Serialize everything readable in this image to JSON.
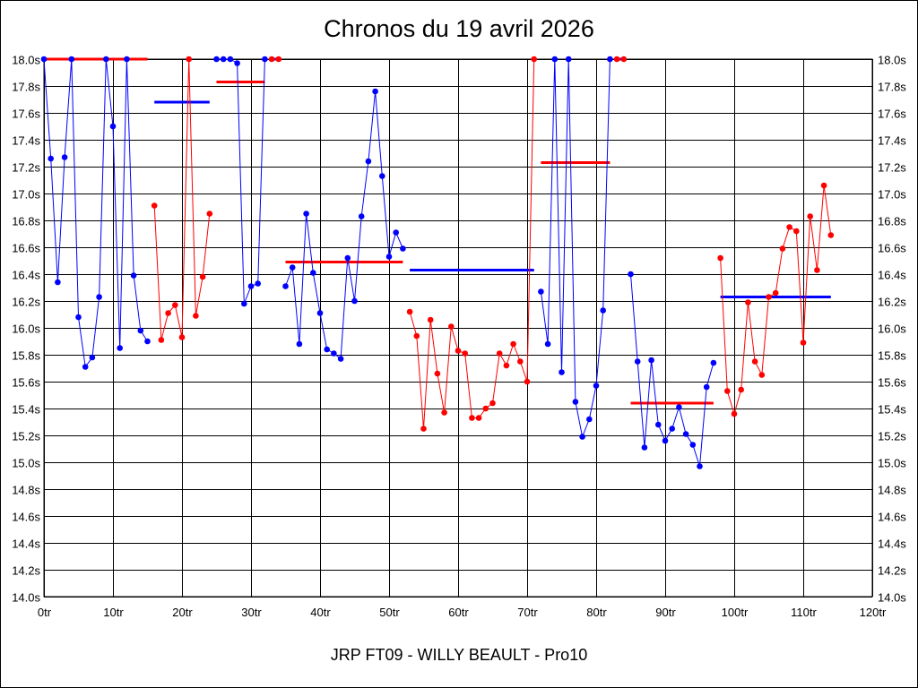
{
  "chart_data": {
    "type": "line",
    "title": "Chronos du 19 avril 2026",
    "subtitle": "JRP FT09 - WILLY BEAULT - Pro10",
    "xlabel": "",
    "ylabel": "",
    "xlim": [
      0,
      120
    ],
    "ylim": [
      14.0,
      18.0
    ],
    "grid": true,
    "x_unit": "tr",
    "y_unit": "s",
    "x_ticks": [
      "0tr",
      "10tr",
      "20tr",
      "30tr",
      "40tr",
      "50tr",
      "60tr",
      "70tr",
      "80tr",
      "90tr",
      "100tr",
      "110tr",
      "120tr"
    ],
    "y_ticks": [
      "14.0s",
      "14.2s",
      "14.4s",
      "14.6s",
      "14.8s",
      "15.0s",
      "15.2s",
      "15.4s",
      "15.6s",
      "15.8s",
      "16.0s",
      "16.2s",
      "16.4s",
      "16.6s",
      "16.8s",
      "17.0s",
      "17.2s",
      "17.4s",
      "17.6s",
      "17.8s",
      "18.0s"
    ],
    "colors": {
      "blue": "#0000ff",
      "red": "#ff0000"
    },
    "series": [
      {
        "name": "segment-1",
        "color": "blue",
        "start": 0,
        "values": [
          18.0,
          17.26,
          16.34,
          17.27,
          18.0,
          16.08,
          15.71,
          15.78,
          16.23,
          18.0,
          17.5,
          15.85,
          18.0,
          16.39,
          15.98,
          15.9
        ]
      },
      {
        "name": "segment-2",
        "color": "red",
        "start": 16,
        "values": [
          16.91,
          15.91,
          16.11,
          16.17,
          15.93,
          18.0,
          16.09,
          16.38,
          16.85
        ]
      },
      {
        "name": "segment-3",
        "color": "blue",
        "start": 25,
        "values": [
          18.0,
          18.0,
          18.0,
          17.97,
          16.18,
          16.31,
          16.33,
          18.0
        ]
      },
      {
        "name": "segment-4",
        "color": "red",
        "start": 33,
        "values": [
          18.0,
          18.0
        ]
      },
      {
        "name": "segment-5",
        "color": "blue",
        "start": 35,
        "values": [
          16.31,
          16.45,
          15.88,
          16.85,
          16.41,
          16.11,
          15.84,
          15.81,
          15.77,
          16.52,
          16.2,
          16.83,
          17.24,
          17.76,
          17.13,
          16.53,
          16.71,
          16.59
        ]
      },
      {
        "name": "segment-6",
        "color": "red",
        "start": 53,
        "values": [
          16.12,
          15.94,
          15.25,
          16.06,
          15.66,
          15.37,
          16.01,
          15.83,
          15.81,
          15.33,
          15.33,
          15.4,
          15.44,
          15.81,
          15.72,
          15.88,
          15.75,
          15.6,
          18.0
        ]
      },
      {
        "name": "segment-7",
        "color": "blue",
        "start": 72,
        "values": [
          16.27,
          15.88,
          18.0,
          15.67,
          18.0,
          15.45,
          15.19,
          15.32,
          15.57,
          16.13,
          18.0
        ]
      },
      {
        "name": "segment-8",
        "color": "red",
        "start": 83,
        "values": [
          18.0,
          18.0
        ]
      },
      {
        "name": "segment-9",
        "color": "blue",
        "start": 85,
        "values": [
          16.4,
          15.75,
          15.11,
          15.76,
          15.28,
          15.16,
          15.25,
          15.41,
          15.21,
          15.13,
          14.97,
          15.56,
          15.74
        ]
      },
      {
        "name": "segment-10",
        "color": "red",
        "start": 98,
        "values": [
          16.52,
          15.53,
          15.36,
          15.54,
          16.19,
          15.75,
          15.65,
          16.23,
          16.26,
          16.59,
          16.75,
          16.72,
          15.89,
          16.83,
          16.43,
          17.06,
          16.69
        ]
      }
    ],
    "averages": [
      {
        "color": "red",
        "from": 0,
        "to": 15,
        "value": 18.0
      },
      {
        "color": "blue",
        "from": 16,
        "to": 24,
        "value": 17.68
      },
      {
        "color": "red",
        "from": 25,
        "to": 32,
        "value": 17.83
      },
      {
        "color": "blue",
        "from": 33,
        "to": 34,
        "value": 18.0
      },
      {
        "color": "red",
        "from": 35,
        "to": 52,
        "value": 16.49
      },
      {
        "color": "blue",
        "from": 53,
        "to": 71,
        "value": 16.43
      },
      {
        "color": "red",
        "from": 72,
        "to": 82,
        "value": 17.23
      },
      {
        "color": "blue",
        "from": 83,
        "to": 84,
        "value": 18.0
      },
      {
        "color": "red",
        "from": 85,
        "to": 97,
        "value": 15.44
      },
      {
        "color": "blue",
        "from": 98,
        "to": 114,
        "value": 16.23
      }
    ]
  }
}
